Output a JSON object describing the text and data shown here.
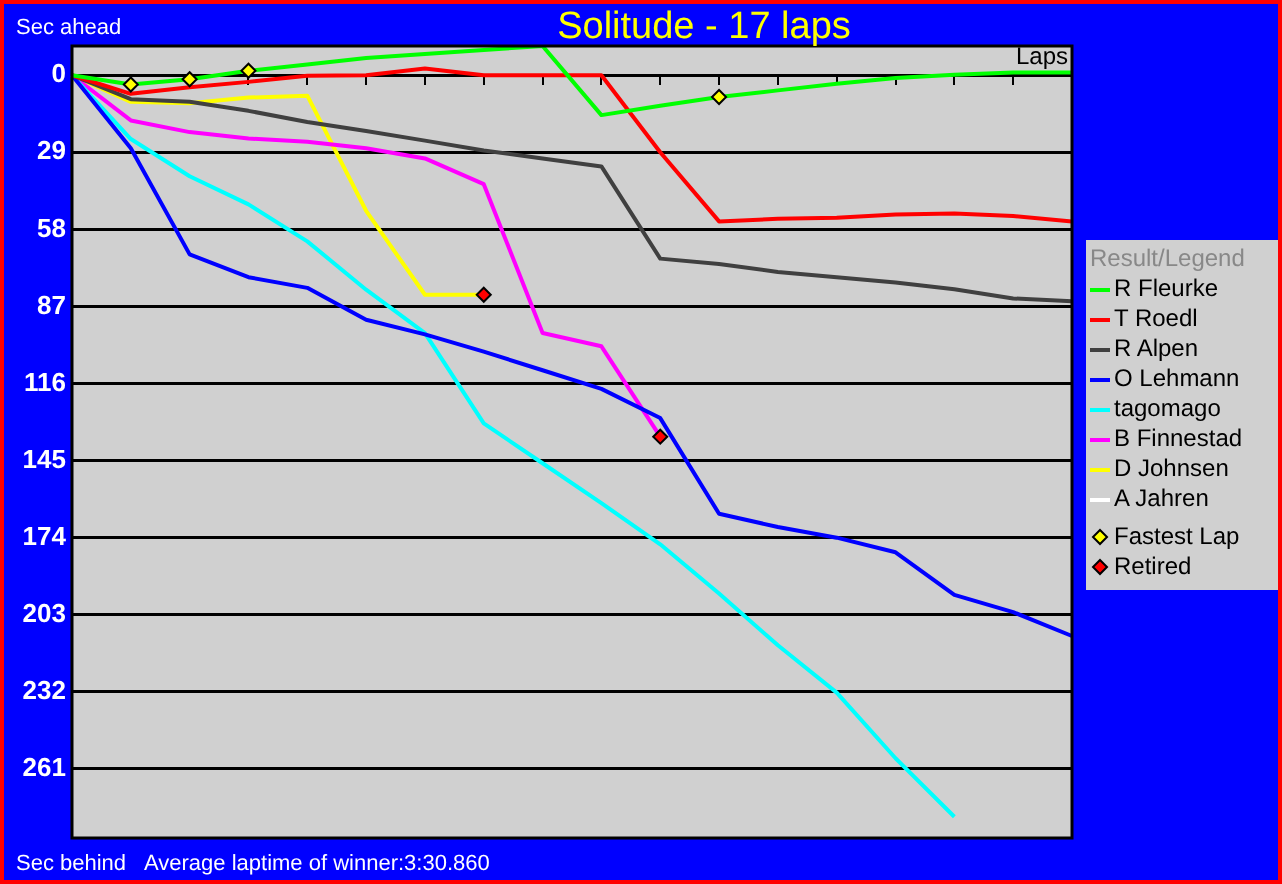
{
  "chart_data": {
    "type": "line",
    "title": "Solitude - 17 laps",
    "xlabel": "Laps",
    "legend_title": "Result/Legend",
    "annotations": [
      "Sec ahead",
      "Sec behind",
      "Average laptime of winner:3:30.860"
    ],
    "categories": [
      null,
      null,
      null,
      null,
      null,
      null,
      null,
      null,
      null,
      null,
      null,
      null,
      null,
      null,
      null,
      null,
      null,
      null
    ],
    "ylim": [
      287,
      -11
    ],
    "yticks": [
      0,
      29,
      58,
      87,
      116,
      145,
      174,
      203,
      232,
      261
    ],
    "grid": "y",
    "legend": "right",
    "tick_labels": "y",
    "marker": "none",
    "line_style": "solid",
    "series": [
      {
        "name": "R Fleurke",
        "color": "#00ff00",
        "values": [
          0,
          3.5,
          1.5,
          -1.7,
          -4,
          -6.5,
          -8,
          -9.5,
          -11,
          15,
          11.5,
          8.2,
          5.7,
          3.2,
          1,
          -0.2,
          -1,
          -1
        ]
      },
      {
        "name": "T Roedl",
        "color": "#ff0000",
        "values": [
          0,
          7,
          4.5,
          2.5,
          0.2,
          0,
          -2.5,
          0,
          0,
          0,
          29,
          55,
          54,
          53.6,
          52.4,
          52,
          53,
          55
        ]
      },
      {
        "name": "R Alpen",
        "color": "#404040",
        "values": [
          0,
          9,
          10,
          13.4,
          17.6,
          21,
          24.6,
          28.3,
          31.3,
          34.3,
          69,
          71,
          74,
          76,
          78,
          80.5,
          84,
          85
        ]
      },
      {
        "name": "O Lehmann",
        "color": "#0000ff",
        "values": [
          0,
          27.5,
          67.4,
          76,
          80,
          92,
          97.5,
          104,
          111,
          118,
          129,
          165,
          170,
          174,
          179.5,
          195.5,
          202,
          211
        ]
      },
      {
        "name": "tagomago",
        "color": "#00ffff",
        "values": [
          0,
          24,
          38,
          48.6,
          62.5,
          80.7,
          97,
          131,
          146,
          161,
          176.5,
          195,
          214.5,
          232.3,
          257,
          279,
          null,
          null
        ]
      },
      {
        "name": "B Finnestad",
        "color": "#ff00ff",
        "values": [
          0,
          17,
          21.4,
          23.8,
          25,
          27.5,
          31.3,
          41,
          97,
          102,
          136,
          null,
          null,
          null,
          null,
          null,
          null,
          null
        ]
      },
      {
        "name": "D Johnsen",
        "color": "#ffff00",
        "values": [
          0,
          10,
          10.5,
          8.4,
          7.7,
          51,
          82.6,
          82.6,
          null,
          null,
          null,
          null,
          null,
          null,
          null,
          null,
          null,
          null
        ]
      },
      {
        "name": "A Jahren",
        "color": "#ffffff",
        "values": [
          null,
          null,
          null,
          null,
          null,
          null,
          null,
          null,
          null,
          null,
          null,
          null,
          null,
          null,
          null,
          null,
          null,
          null
        ]
      },
      {
        "name": "Fastest Lap",
        "type": "scatter",
        "marker": "diamond",
        "color": "#ffff00",
        "values": [
          null,
          3.5,
          1.5,
          -1.7,
          null,
          null,
          null,
          null,
          null,
          null,
          null,
          8.2,
          null,
          null,
          null,
          null,
          null,
          null
        ]
      },
      {
        "name": "Retired",
        "type": "scatter",
        "marker": "diamond",
        "color": "#ff0000",
        "values": [
          null,
          null,
          null,
          null,
          null,
          null,
          null,
          82.6,
          null,
          null,
          136,
          null,
          null,
          null,
          null,
          null,
          null,
          null
        ]
      }
    ]
  }
}
